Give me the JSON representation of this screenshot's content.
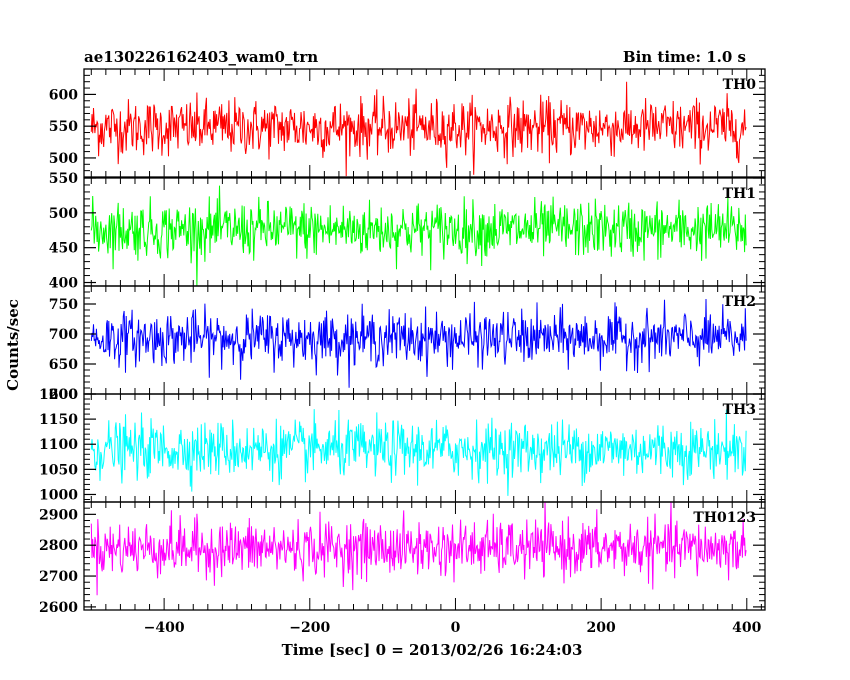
{
  "header": {
    "title": "ae130226162403_wam0_trn",
    "bin_time": "Bin time: 1.0 s"
  },
  "chart_data": {
    "type": "line",
    "xlabel": "Time [sec] 0 = 2013/02/26 16:24:03",
    "ylabel": "Counts/sec",
    "xlim": [
      -510,
      425
    ],
    "x_ticks": [
      -400,
      -200,
      0,
      200,
      400
    ],
    "x_tick_labels": [
      "−400",
      "−200",
      "0",
      "200",
      "400"
    ],
    "x_range": [
      -500,
      399
    ],
    "bin_time_s": 1.0,
    "grid": false,
    "panels": [
      {
        "name": "TH0",
        "color": "#ff0000",
        "ylim": [
          470,
          640
        ],
        "y_ticks": [
          500,
          550,
          600
        ],
        "band": [
          505,
          597
        ],
        "mean": 548,
        "sigma": 22
      },
      {
        "name": "TH1",
        "color": "#00ff00",
        "ylim": [
          395,
          550
        ],
        "y_ticks": [
          400,
          450,
          500,
          550
        ],
        "band": [
          435,
          520
        ],
        "mean": 476,
        "sigma": 20
      },
      {
        "name": "TH2",
        "color": "#0000ff",
        "ylim": [
          600,
          780
        ],
        "y_ticks": [
          600,
          650,
          700,
          750
        ],
        "band": [
          650,
          735
        ],
        "mean": 693,
        "sigma": 22
      },
      {
        "name": "TH3",
        "color": "#00ffff",
        "ylim": [
          985,
          1200
        ],
        "y_ticks": [
          1000,
          1050,
          1100,
          1150,
          1200
        ],
        "band": [
          1040,
          1140
        ],
        "mean": 1090,
        "sigma": 28
      },
      {
        "name": "TH0123",
        "color": "#ff00ff",
        "ylim": [
          2590,
          2940
        ],
        "y_ticks": [
          2600,
          2700,
          2800,
          2900
        ],
        "band": [
          2720,
          2860
        ],
        "mean": 2790,
        "sigma": 45
      }
    ]
  }
}
